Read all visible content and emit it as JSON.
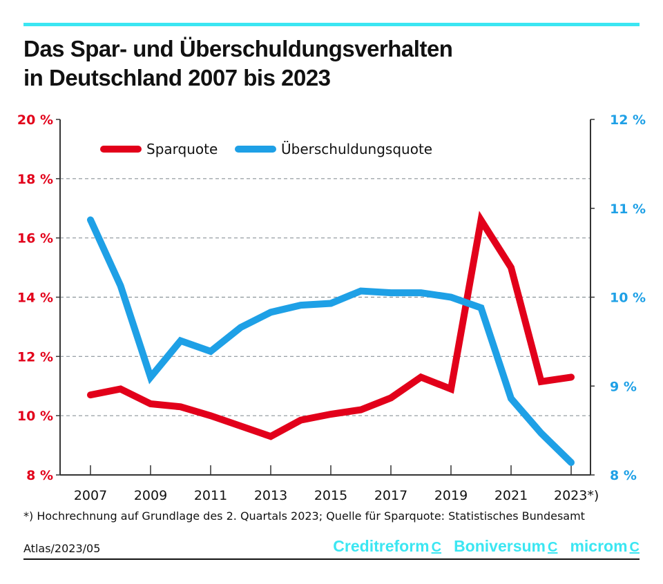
{
  "header": {
    "title_line1": "Das Spar- und Überschuldungsverhalten",
    "title_line2": "in Deutschland 2007 bis 2023"
  },
  "footer": {
    "footnote": "*) Hochrechnung auf Grundlage des 2. Quartals 2023; Quelle für Sparquote: Statistisches Bundesamt",
    "atlas": "Atlas/2023/05",
    "logos": [
      "Creditreform",
      "Boniversum",
      "microm"
    ]
  },
  "chart_data": {
    "type": "line",
    "x": [
      2007,
      2008,
      2009,
      2010,
      2011,
      2012,
      2013,
      2014,
      2015,
      2016,
      2017,
      2018,
      2019,
      2020,
      2021,
      2022,
      2023
    ],
    "xticks": [
      "2007",
      "2009",
      "2011",
      "2013",
      "2015",
      "2017",
      "2019",
      "2021",
      "2023*)"
    ],
    "xtick_values": [
      2007,
      2009,
      2011,
      2013,
      2015,
      2017,
      2019,
      2021,
      2023
    ],
    "left_axis": {
      "ylim": [
        8,
        20
      ],
      "ticks": [
        "8 %",
        "10 %",
        "12 %",
        "14 %",
        "16 %",
        "18 %",
        "20 %"
      ],
      "tick_values": [
        8,
        10,
        12,
        14,
        16,
        18,
        20
      ],
      "color": "#e2001a"
    },
    "right_axis": {
      "ylim": [
        8,
        12
      ],
      "ticks": [
        "8 %",
        "9 %",
        "10 %",
        "11 %",
        "12 %"
      ],
      "tick_values": [
        8,
        9,
        10,
        11,
        12
      ],
      "color": "#1ea0e6"
    },
    "grid": true,
    "legend": "top-left",
    "series": [
      {
        "name": "Sparquote",
        "axis": "left",
        "color": "#e2001a",
        "values": [
          10.7,
          10.9,
          10.4,
          10.3,
          10.0,
          9.65,
          9.3,
          9.85,
          10.05,
          10.2,
          10.6,
          11.3,
          10.9,
          16.6,
          15.0,
          11.15,
          11.3
        ]
      },
      {
        "name": "Überschuldungsquote",
        "axis": "right",
        "color": "#1ea0e6",
        "values": [
          10.87,
          10.13,
          9.1,
          9.51,
          9.39,
          9.66,
          9.83,
          9.91,
          9.93,
          10.07,
          10.05,
          10.05,
          10.0,
          9.88,
          8.86,
          8.47,
          8.14
        ]
      }
    ]
  }
}
